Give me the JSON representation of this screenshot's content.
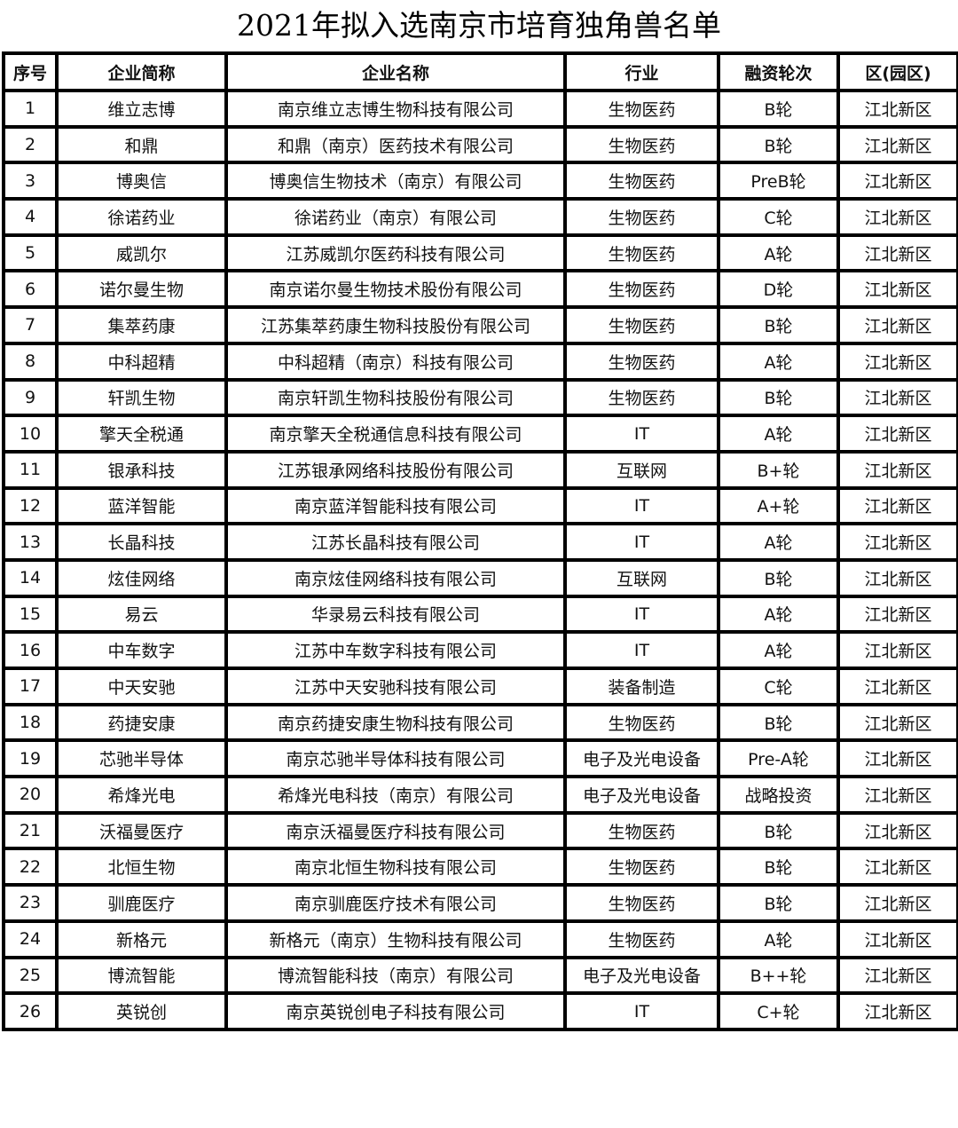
{
  "title": "2021年拟入选南京市培育独角兽名单",
  "headers": [
    "序号",
    "企业简称",
    "企业名称",
    "行业",
    "融资轮次",
    "区(园区)"
  ],
  "rows": [
    [
      "1",
      "维立志博",
      "南京维立志博生物科技有限公司",
      "生物医药",
      "B轮",
      "江北新区"
    ],
    [
      "2",
      "和鼎",
      "和鼎（南京）医药技术有限公司",
      "生物医药",
      "B轮",
      "江北新区"
    ],
    [
      "3",
      "博奥信",
      "博奥信生物技术（南京）有限公司",
      "生物医药",
      "PreB轮",
      "江北新区"
    ],
    [
      "4",
      "徐诺药业",
      "徐诺药业（南京）有限公司",
      "生物医药",
      "C轮",
      "江北新区"
    ],
    [
      "5",
      "威凯尔",
      "江苏威凯尔医药科技有限公司",
      "生物医药",
      "A轮",
      "江北新区"
    ],
    [
      "6",
      "诺尔曼生物",
      "南京诺尔曼生物技术股份有限公司",
      "生物医药",
      "D轮",
      "江北新区"
    ],
    [
      "7",
      "集萃药康",
      "江苏集萃药康生物科技股份有限公司",
      "生物医药",
      "B轮",
      "江北新区"
    ],
    [
      "8",
      "中科超精",
      "中科超精（南京）科技有限公司",
      "生物医药",
      "A轮",
      "江北新区"
    ],
    [
      "9",
      "轩凯生物",
      "南京轩凯生物科技股份有限公司",
      "生物医药",
      "B轮",
      "江北新区"
    ],
    [
      "10",
      "擎天全税通",
      "南京擎天全税通信息科技有限公司",
      "IT",
      "A轮",
      "江北新区"
    ],
    [
      "11",
      "银承科技",
      "江苏银承网络科技股份有限公司",
      "互联网",
      "B+轮",
      "江北新区"
    ],
    [
      "12",
      "蓝洋智能",
      "南京蓝洋智能科技有限公司",
      "IT",
      "A+轮",
      "江北新区"
    ],
    [
      "13",
      "长晶科技",
      "江苏长晶科技有限公司",
      "IT",
      "A轮",
      "江北新区"
    ],
    [
      "14",
      "炫佳网络",
      "南京炫佳网络科技有限公司",
      "互联网",
      "B轮",
      "江北新区"
    ],
    [
      "15",
      "易云",
      "华录易云科技有限公司",
      "IT",
      "A轮",
      "江北新区"
    ],
    [
      "16",
      "中车数字",
      "江苏中车数字科技有限公司",
      "IT",
      "A轮",
      "江北新区"
    ],
    [
      "17",
      "中天安驰",
      "江苏中天安驰科技有限公司",
      "装备制造",
      "C轮",
      "江北新区"
    ],
    [
      "18",
      "药捷安康",
      "南京药捷安康生物科技有限公司",
      "生物医药",
      "B轮",
      "江北新区"
    ],
    [
      "19",
      "芯驰半导体",
      "南京芯驰半导体科技有限公司",
      "电子及光电设备",
      "Pre-A轮",
      "江北新区"
    ],
    [
      "20",
      "希烽光电",
      "希烽光电科技（南京）有限公司",
      "电子及光电设备",
      "战略投资",
      "江北新区"
    ],
    [
      "21",
      "沃福曼医疗",
      "南京沃福曼医疗科技有限公司",
      "生物医药",
      "B轮",
      "江北新区"
    ],
    [
      "22",
      "北恒生物",
      "南京北恒生物科技有限公司",
      "生物医药",
      "B轮",
      "江北新区"
    ],
    [
      "23",
      "驯鹿医疗",
      "南京驯鹿医疗技术有限公司",
      "生物医药",
      "B轮",
      "江北新区"
    ],
    [
      "24",
      "新格元",
      "新格元（南京）生物科技有限公司",
      "生物医药",
      "A轮",
      "江北新区"
    ],
    [
      "25",
      "博流智能",
      "博流智能科技（南京）有限公司",
      "电子及光电设备",
      "B++轮",
      "江北新区"
    ],
    [
      "26",
      "英锐创",
      "南京英锐创电子科技有限公司",
      "IT",
      "C+轮",
      "江北新区"
    ]
  ]
}
